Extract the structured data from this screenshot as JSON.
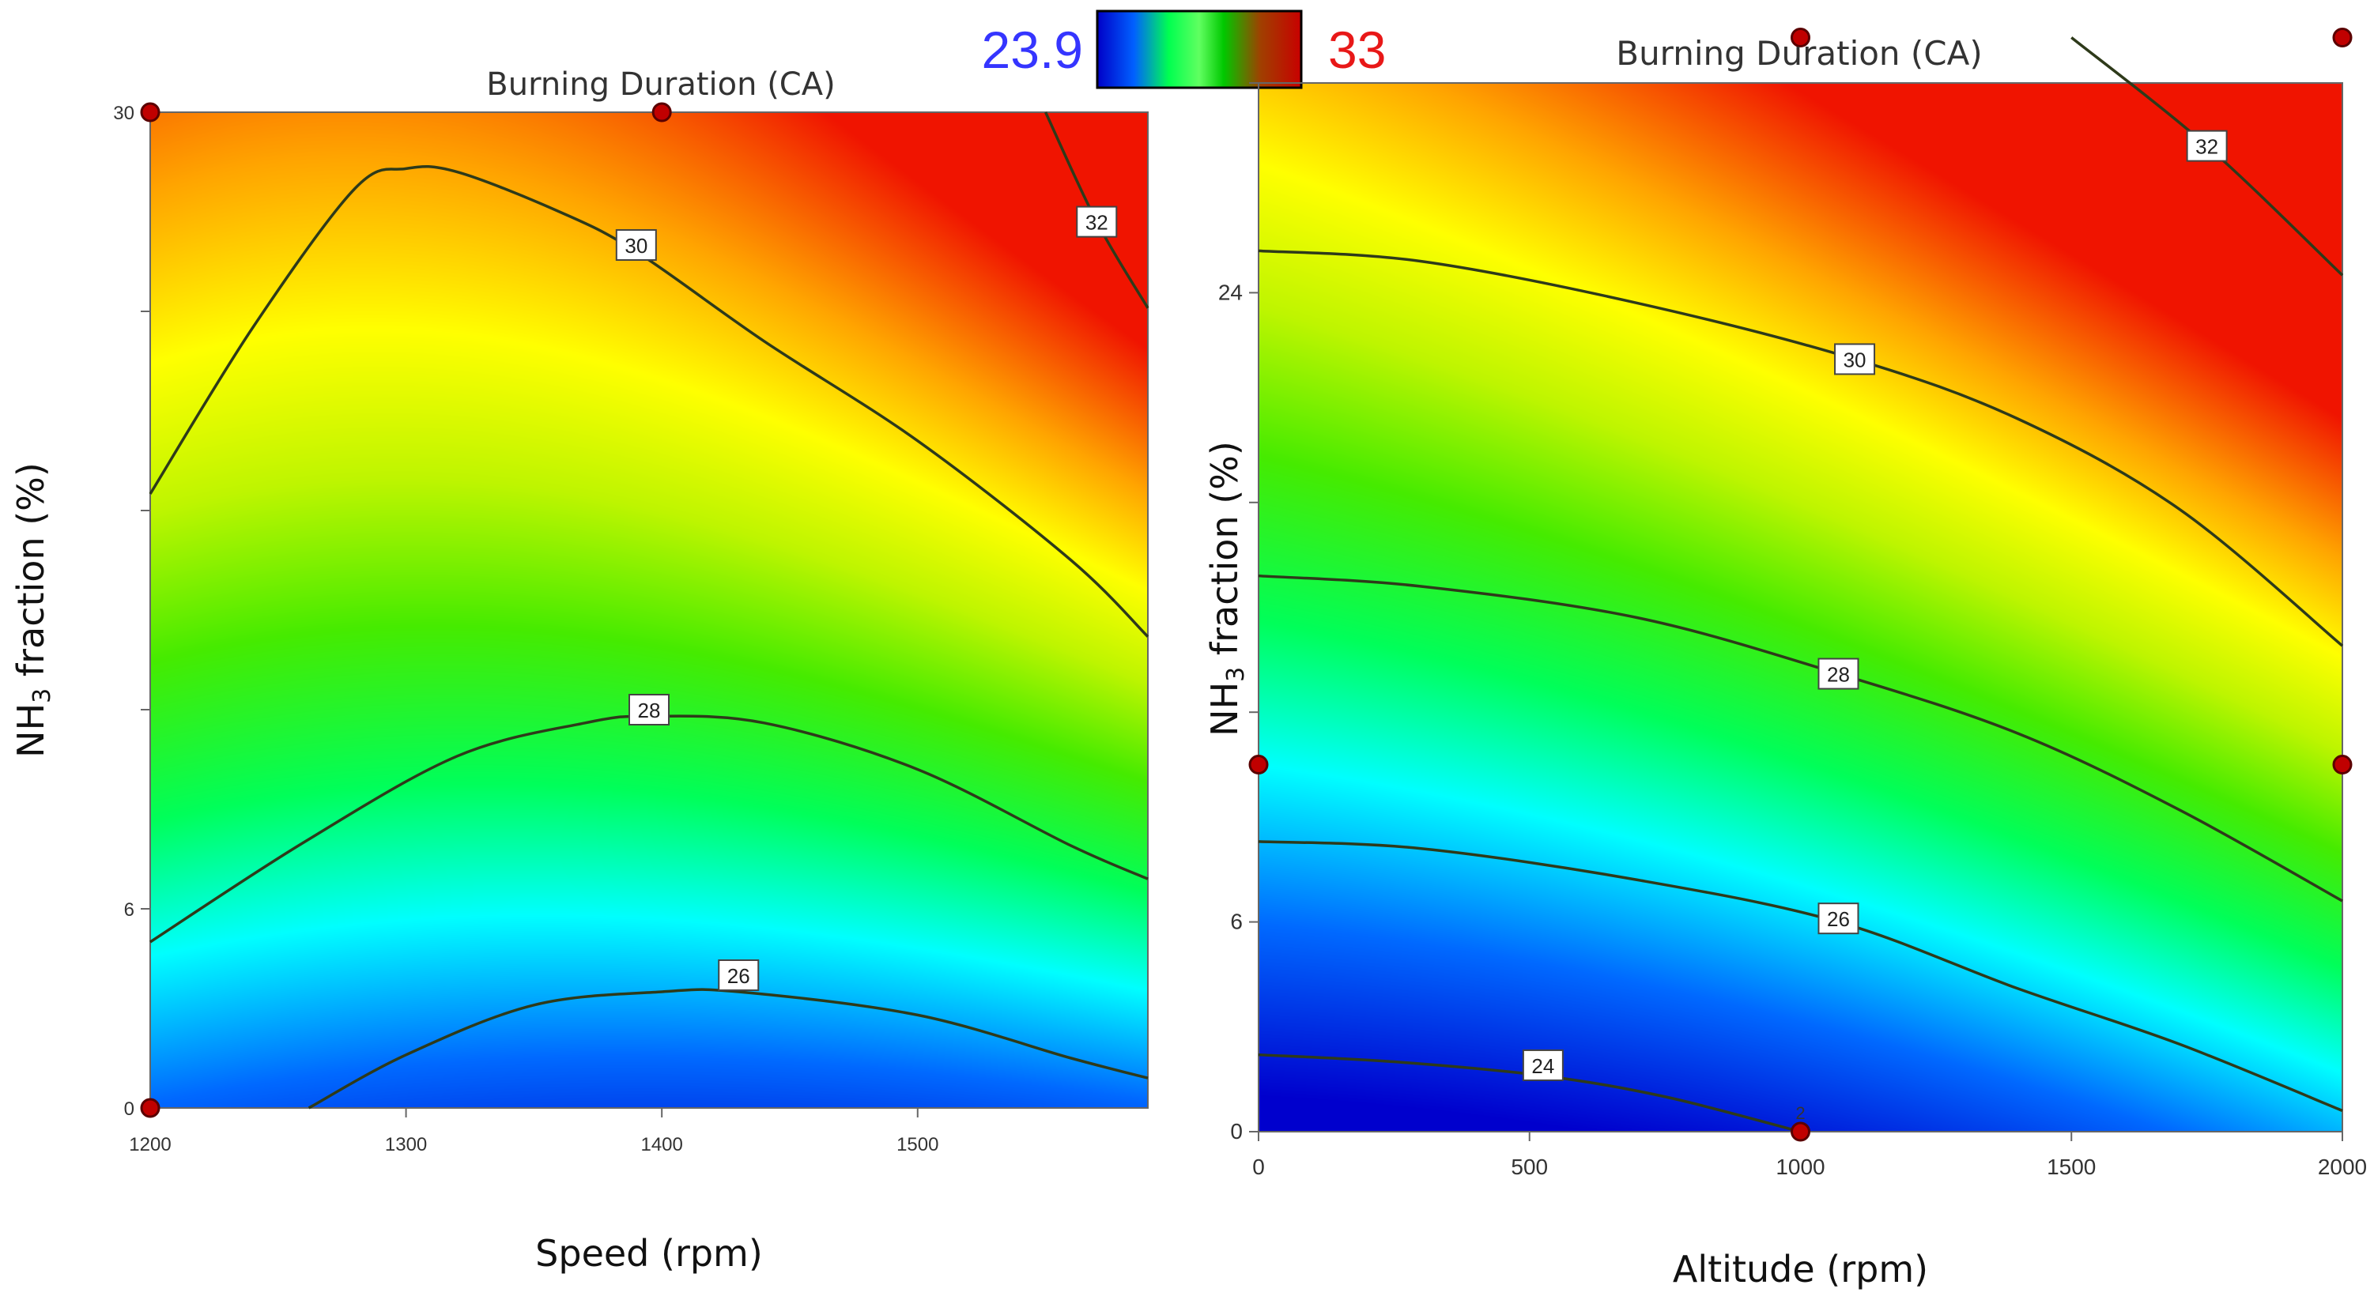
{
  "colorbar": {
    "min_label": "23.9",
    "max_label": "33",
    "min_color": "#3535ff",
    "max_color": "#e81818"
  },
  "chart_data": [
    {
      "type": "heatmap",
      "subtype": "contour",
      "title": "Burning Duration (CA)",
      "xlabel": "Speed (rpm)",
      "ylabel": "NH3 fraction (%)",
      "ylabel_parts": {
        "pre": "NH",
        "sub": "3",
        "post": " fraction (%)"
      },
      "xlim": [
        1200,
        1590
      ],
      "ylim": [
        0,
        30
      ],
      "x_ticks": [
        1200,
        1300,
        1400,
        1500
      ],
      "y_ticks": [
        0,
        6,
        12,
        18,
        24,
        30
      ],
      "y_tick_labels": [
        "0",
        "6",
        "",
        "",
        "",
        "30"
      ],
      "color_range": [
        23.9,
        33
      ],
      "contour_levels": [
        26,
        28,
        30,
        32
      ],
      "contours": [
        {
          "level": 26,
          "label": "26",
          "label_at": [
            1430,
            4.0
          ],
          "points": [
            [
              1262,
              0
            ],
            [
              1300,
              1.6
            ],
            [
              1350,
              3.1
            ],
            [
              1400,
              3.5
            ],
            [
              1430,
              3.5
            ],
            [
              1500,
              2.8
            ],
            [
              1560,
              1.5
            ],
            [
              1590,
              0.9
            ]
          ]
        },
        {
          "level": 28,
          "label": "28",
          "label_at": [
            1395,
            12.0
          ],
          "points": [
            [
              1200,
              5.0
            ],
            [
              1260,
              8.0
            ],
            [
              1320,
              10.6
            ],
            [
              1370,
              11.6
            ],
            [
              1395,
              11.8
            ],
            [
              1440,
              11.6
            ],
            [
              1500,
              10.2
            ],
            [
              1560,
              7.9
            ],
            [
              1590,
              6.9
            ]
          ]
        },
        {
          "level": 30,
          "label": "30",
          "label_at": [
            1390,
            26.0
          ],
          "points": [
            [
              1200,
              18.5
            ],
            [
              1240,
              23.5
            ],
            [
              1280,
              27.7
            ],
            [
              1300,
              28.3
            ],
            [
              1320,
              28.2
            ],
            [
              1360,
              27.0
            ],
            [
              1390,
              25.8
            ],
            [
              1440,
              23.1
            ],
            [
              1500,
              20.1
            ],
            [
              1560,
              16.5
            ],
            [
              1590,
              14.2
            ]
          ]
        },
        {
          "level": 32,
          "label": "32",
          "label_at": [
            1570,
            26.7
          ],
          "points": [
            [
              1550,
              30
            ],
            [
              1570,
              26.7
            ],
            [
              1590,
              24.1
            ]
          ]
        }
      ],
      "design_points": [
        [
          1200,
          30
        ],
        [
          1400,
          30
        ],
        [
          1200,
          0
        ]
      ]
    },
    {
      "type": "heatmap",
      "subtype": "contour",
      "title": "Burning Duration (CA)",
      "xlabel": "Altitude (rpm)",
      "ylabel": "NH3 fraction (%)",
      "ylabel_parts": {
        "pre": "NH",
        "sub": "3",
        "post": " fraction (%)"
      },
      "xlim": [
        0,
        2000
      ],
      "ylim": [
        0,
        30
      ],
      "x_ticks": [
        0,
        500,
        1000,
        1500,
        2000
      ],
      "y_ticks": [
        0,
        6,
        12,
        18,
        24,
        30
      ],
      "y_tick_labels": [
        "0",
        "6",
        "",
        "",
        "24",
        ""
      ],
      "color_range": [
        23.9,
        33
      ],
      "contour_levels": [
        24,
        26,
        28,
        30,
        32
      ],
      "contours": [
        {
          "level": 24,
          "label": "24",
          "label_at": [
            525,
            1.9
          ],
          "points": [
            [
              0,
              2.2
            ],
            [
              250,
              2.0
            ],
            [
              525,
              1.6
            ],
            [
              750,
              1.0
            ],
            [
              1000,
              0
            ]
          ]
        },
        {
          "level": 26,
          "label": "26",
          "label_at": [
            1070,
            6.1
          ],
          "points": [
            [
              0,
              8.3
            ],
            [
              300,
              8.1
            ],
            [
              700,
              7.2
            ],
            [
              1070,
              6.0
            ],
            [
              1400,
              4.1
            ],
            [
              1700,
              2.5
            ],
            [
              2000,
              0.6
            ]
          ]
        },
        {
          "level": 28,
          "label": "28",
          "label_at": [
            1070,
            13.1
          ],
          "points": [
            [
              0,
              15.9
            ],
            [
              300,
              15.6
            ],
            [
              700,
              14.7
            ],
            [
              1070,
              13.1
            ],
            [
              1400,
              11.4
            ],
            [
              1700,
              9.2
            ],
            [
              2000,
              6.6
            ]
          ]
        },
        {
          "level": 30,
          "label": "30",
          "label_at": [
            1100,
            22.1
          ],
          "points": [
            [
              0,
              25.2
            ],
            [
              300,
              24.9
            ],
            [
              700,
              23.7
            ],
            [
              1100,
              22.1
            ],
            [
              1400,
              20.4
            ],
            [
              1700,
              17.8
            ],
            [
              2000,
              13.9
            ]
          ]
        },
        {
          "level": 32,
          "label": "32",
          "label_at": [
            1750,
            28.2
          ],
          "points": [
            [
              1500,
              31.3
            ],
            [
              1750,
              28.2
            ],
            [
              2000,
              24.5
            ]
          ]
        }
      ],
      "design_points": [
        [
          1000,
          31.3
        ],
        [
          2000,
          31.3
        ],
        [
          0,
          10.5
        ],
        [
          2000,
          10.5
        ],
        [
          1000,
          0
        ]
      ],
      "point_annotations": [
        {
          "text": "2",
          "at": [
            1000,
            0
          ]
        }
      ]
    }
  ]
}
